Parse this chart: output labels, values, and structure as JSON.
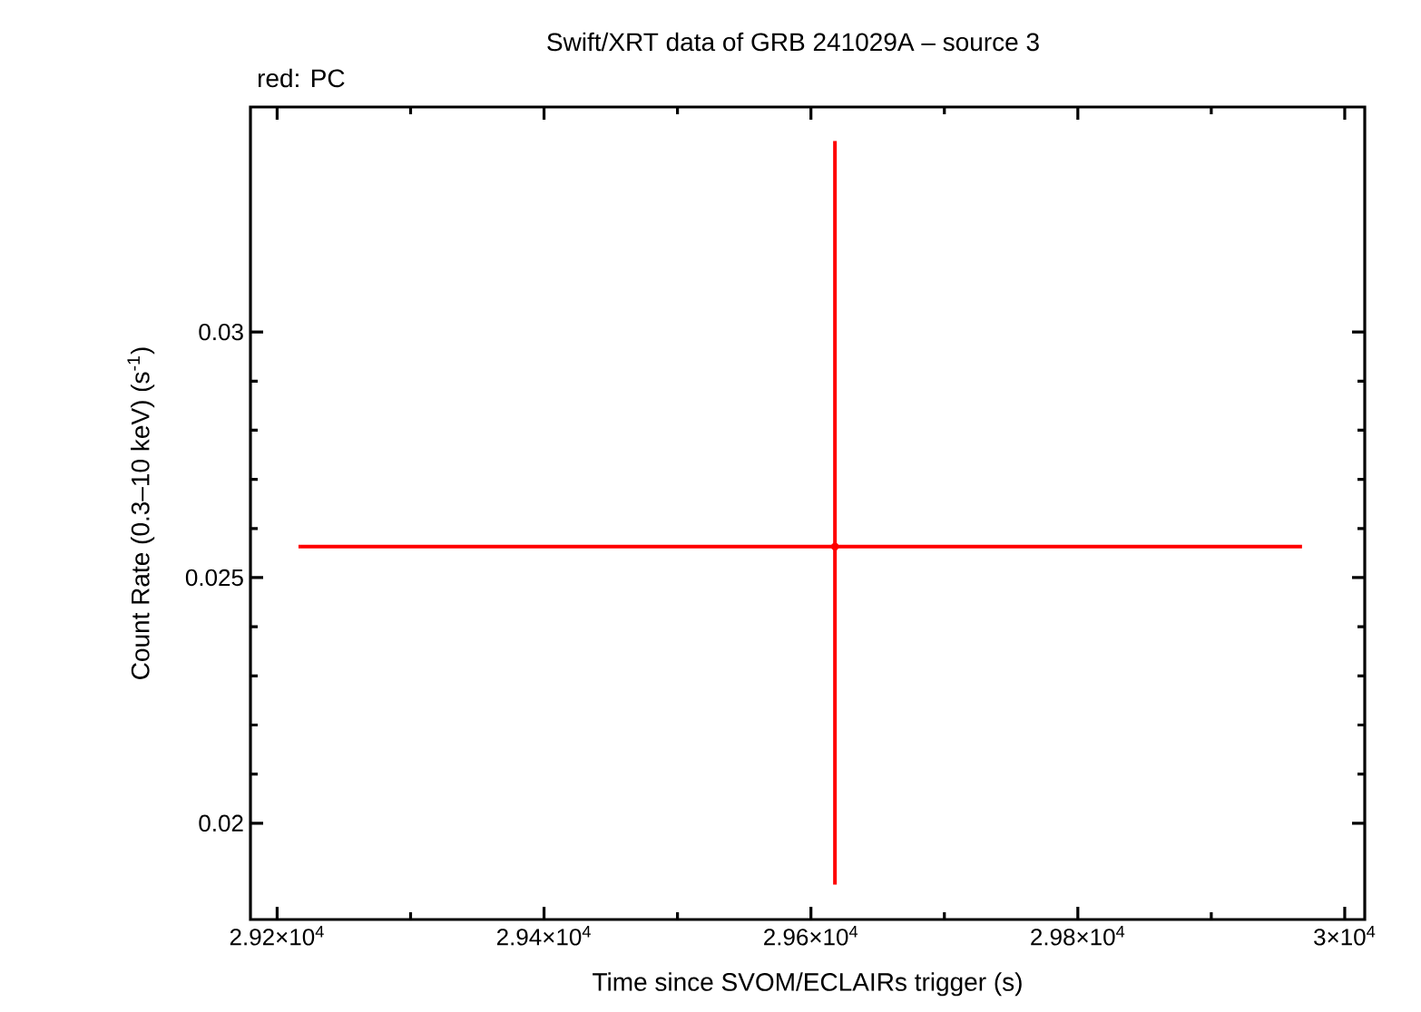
{
  "chart_data": {
    "type": "scatter",
    "title": "Swift/XRT data of GRB 241029A – source 3",
    "annotations": [
      "red: PC"
    ],
    "xlabel": "Time since SVOM/ECLAIRs trigger (s)",
    "ylabel": "Count Rate (0.3–10 keV) (s$^{-1}$)",
    "x": [
      29618
    ],
    "series": [
      {
        "color": "#ff0000",
        "values": [
          0.02563
        ],
        "errors": [
          [
            0.01875,
            0.03389
          ]
        ],
        "xerrors": [
          [
            29216,
            29968
          ]
        ]
      }
    ],
    "xlim": [
      29180,
      30015
    ],
    "ylim": [
      0.01804,
      0.03458
    ],
    "xticks": [
      {
        "value": 29200,
        "label": "2.92×10$^{4}$"
      },
      {
        "value": 29400,
        "label": "2.94×10$^{4}$"
      },
      {
        "value": 29600,
        "label": "2.96×10$^{4}$"
      },
      {
        "value": 29800,
        "label": "2.98×10$^{4}$"
      },
      {
        "value": 30000,
        "label": "3×10$^{4}$"
      }
    ],
    "yticks": [
      0.02,
      0.025,
      0.03
    ]
  }
}
